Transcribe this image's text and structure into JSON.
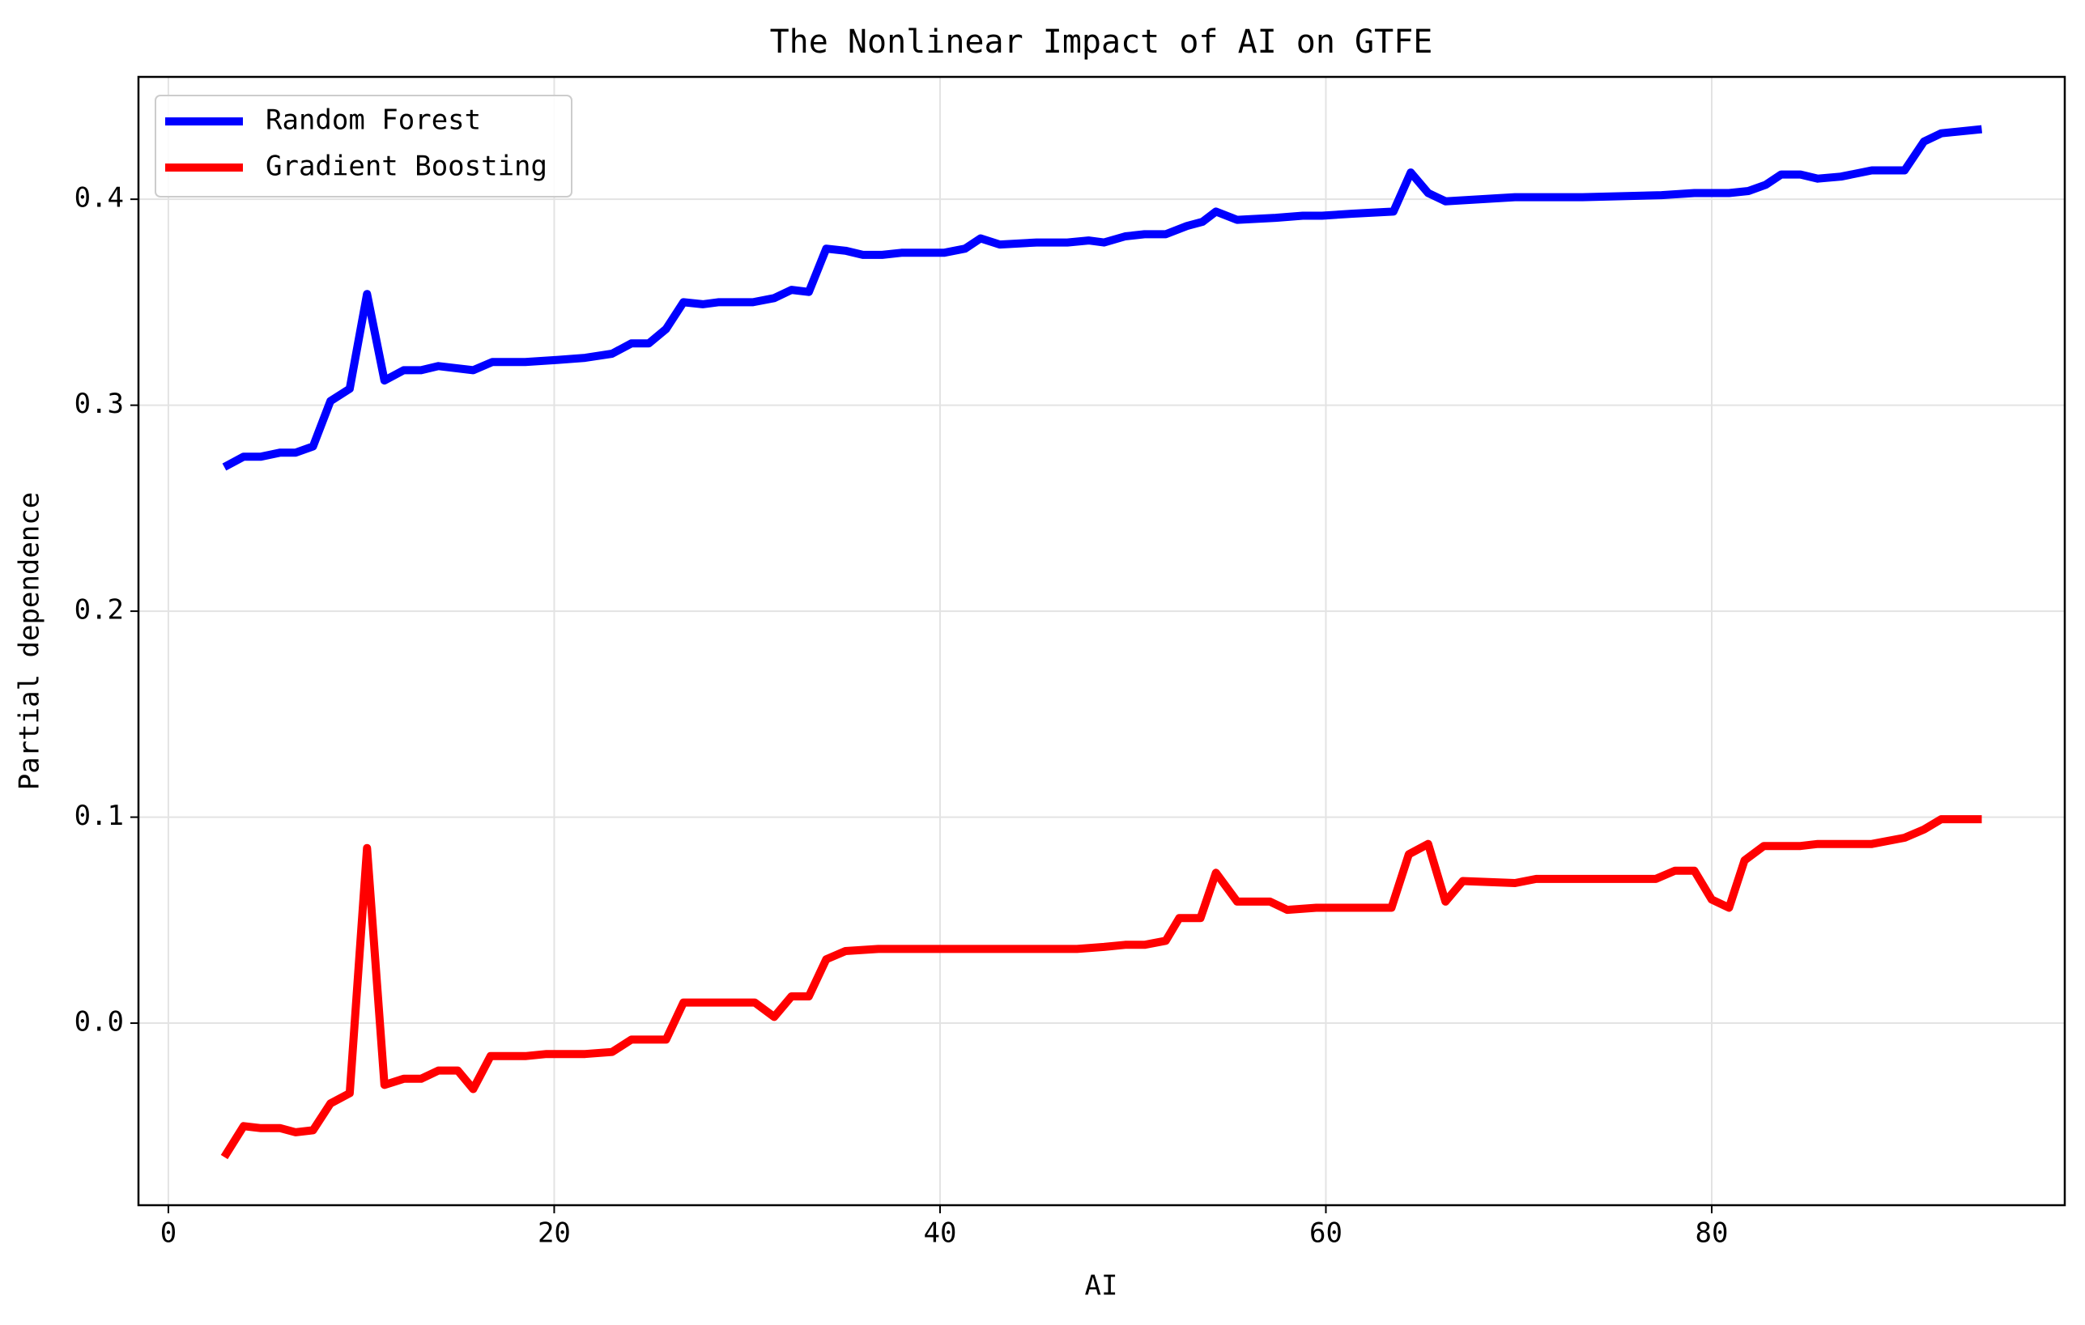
{
  "chart_data": {
    "type": "line",
    "title": "The Nonlinear Impact of AI on GTFE",
    "x_label": "AI",
    "y_label": "Partial dependence",
    "xlim": [
      -1.55,
      98.3
    ],
    "ylim": [
      -0.0884,
      0.4594
    ],
    "xticks": [
      0,
      20,
      40,
      60,
      80
    ],
    "yticks": [
      {
        "value": 0,
        "label": "0.0"
      },
      0.1,
      0.2,
      0.3,
      0.4
    ],
    "grid": true,
    "legend": "upper left",
    "series": [
      {
        "name": "Random Forest",
        "color": "#0000ff",
        "x": [
          2.9,
          3.9,
          4.8,
          5.8,
          6.6,
          7.5,
          8.4,
          9.4,
          10.3,
          11.2,
          12.2,
          13.1,
          14.0,
          15.8,
          16.8,
          18.5,
          20.2,
          21.6,
          23.0,
          24.0,
          24.9,
          25.8,
          26.7,
          27.7,
          28.5,
          30.3,
          31.4,
          32.3,
          33.2,
          34.1,
          35.1,
          36.0,
          37.0,
          38.0,
          40.2,
          41.3,
          42.1,
          43.1,
          45.0,
          46.6,
          47.7,
          48.5,
          49.6,
          50.6,
          51.7,
          52.8,
          53.6,
          54.3,
          55.4,
          57.4,
          58.8,
          59.8,
          61.4,
          63.5,
          64.4,
          65.3,
          66.2,
          69.8,
          73.3,
          77.4,
          79.1,
          80.9,
          81.9,
          82.8,
          83.6,
          84.6,
          85.5,
          86.7,
          88.3,
          90.0,
          91.0,
          91.9,
          94.0
        ],
        "values": [
          0.27,
          0.275,
          0.275,
          0.277,
          0.277,
          0.28,
          0.302,
          0.308,
          0.354,
          0.312,
          0.317,
          0.317,
          0.319,
          0.317,
          0.321,
          0.321,
          0.322,
          0.323,
          0.325,
          0.33,
          0.33,
          0.337,
          0.35,
          0.349,
          0.35,
          0.35,
          0.352,
          0.356,
          0.355,
          0.376,
          0.375,
          0.373,
          0.373,
          0.374,
          0.374,
          0.376,
          0.381,
          0.378,
          0.379,
          0.379,
          0.38,
          0.379,
          0.382,
          0.383,
          0.383,
          0.387,
          0.389,
          0.394,
          0.39,
          0.391,
          0.392,
          0.392,
          0.393,
          0.394,
          0.413,
          0.403,
          0.399,
          0.401,
          0.401,
          0.402,
          0.403,
          0.403,
          0.404,
          0.407,
          0.412,
          0.412,
          0.41,
          0.411,
          0.414,
          0.414,
          0.428,
          0.432,
          0.434
        ]
      },
      {
        "name": "Gradient Boosting",
        "color": "#ff0000",
        "x": [
          2.9,
          3.9,
          4.8,
          5.8,
          6.6,
          7.5,
          8.4,
          9.4,
          10.3,
          11.2,
          12.2,
          13.1,
          14.0,
          15.0,
          15.8,
          16.7,
          18.5,
          19.6,
          21.6,
          23.0,
          24.0,
          25.8,
          26.7,
          28.5,
          30.4,
          31.4,
          32.3,
          33.2,
          34.1,
          35.1,
          36.8,
          40.2,
          43.7,
          47.1,
          48.5,
          49.6,
          50.6,
          51.7,
          52.4,
          53.5,
          54.3,
          55.4,
          57.1,
          58.0,
          59.5,
          63.4,
          64.3,
          65.3,
          66.2,
          67.1,
          69.8,
          70.9,
          77.1,
          78.1,
          79.1,
          80.0,
          80.9,
          81.7,
          82.7,
          84.6,
          85.5,
          88.3,
          90.0,
          91.0,
          91.9,
          94.0
        ],
        "values": [
          -0.065,
          -0.05,
          -0.051,
          -0.051,
          -0.053,
          -0.052,
          -0.039,
          -0.034,
          0.085,
          -0.03,
          -0.027,
          -0.027,
          -0.023,
          -0.023,
          -0.032,
          -0.016,
          -0.016,
          -0.015,
          -0.015,
          -0.014,
          -0.008,
          -0.008,
          0.01,
          0.01,
          0.01,
          0.003,
          0.013,
          0.013,
          0.031,
          0.035,
          0.036,
          0.036,
          0.036,
          0.036,
          0.037,
          0.038,
          0.038,
          0.04,
          0.051,
          0.051,
          0.073,
          0.059,
          0.059,
          0.055,
          0.056,
          0.056,
          0.082,
          0.087,
          0.059,
          0.069,
          0.068,
          0.07,
          0.07,
          0.074,
          0.074,
          0.06,
          0.056,
          0.079,
          0.086,
          0.086,
          0.087,
          0.087,
          0.09,
          0.094,
          0.099,
          0.099
        ]
      }
    ]
  }
}
